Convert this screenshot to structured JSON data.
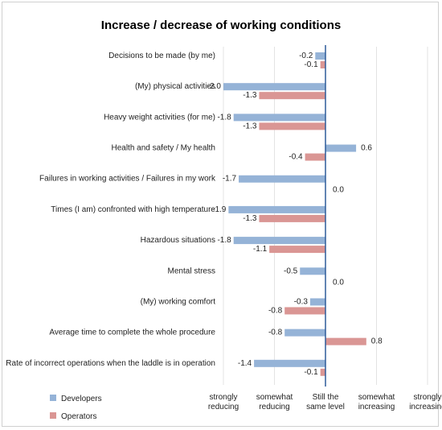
{
  "chart_data": {
    "type": "bar",
    "orientation": "horizontal",
    "title": "Increase / decrease of working conditions",
    "categories": [
      "Decisions to be made (by me)",
      "(My) physical activities",
      "Heavy weight activities (for me)",
      "Health and safety / My health",
      "Failures in working activities / Failures in my work",
      "Times (I am) confronted with high temperature",
      "Hazardous situations",
      "Mental stress",
      "(My) working comfort",
      "Average time to complete the whole procedure",
      "Rate of incorrect operations when the laddle is in operation"
    ],
    "series": [
      {
        "name": "Developers",
        "color": "#95b3d7",
        "values": [
          -0.2,
          -2.0,
          -1.8,
          0.6,
          -1.7,
          -1.9,
          -1.8,
          -0.5,
          -0.3,
          -0.8,
          -1.4
        ]
      },
      {
        "name": "Operators",
        "color": "#da9694",
        "values": [
          -0.1,
          -1.3,
          -1.3,
          -0.4,
          0.0,
          -1.3,
          -1.1,
          0.0,
          -0.8,
          0.8,
          -0.1
        ]
      }
    ],
    "xlim": [
      -2,
      2
    ],
    "x_ticks": [
      {
        "value": -2,
        "label": [
          "strongly",
          "reducing"
        ]
      },
      {
        "value": -1,
        "label": [
          "somewhat",
          "reducing"
        ]
      },
      {
        "value": 0,
        "label": [
          "Still the",
          "same level"
        ]
      },
      {
        "value": 1,
        "label": [
          "somewhat",
          "increasing"
        ]
      },
      {
        "value": 2,
        "label": [
          "strongly",
          "increasing"
        ]
      }
    ],
    "grid": true,
    "legend_position": "bottom-left"
  }
}
